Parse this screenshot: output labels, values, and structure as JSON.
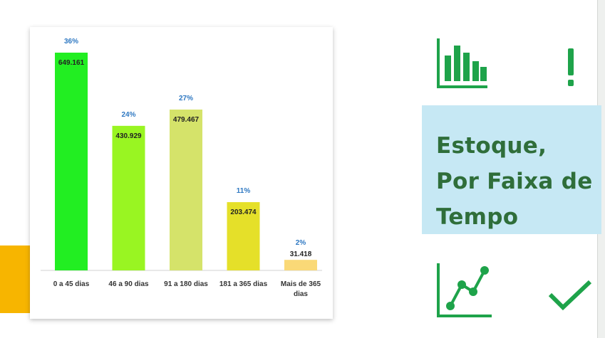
{
  "chart_data": {
    "type": "bar",
    "categories": [
      "0 a 45 dias",
      "46 a 90 dias",
      "91 a 180 dias",
      "181 a 365 dias",
      "Mais de 365 dias"
    ],
    "category_lines": [
      [
        "0 a 45 dias"
      ],
      [
        "46 a 90 dias"
      ],
      [
        "91 a 180 dias"
      ],
      [
        "181 a 365 dias"
      ],
      [
        "Mais de 365",
        "dias"
      ]
    ],
    "values": [
      649161,
      430929,
      479467,
      203474,
      31418
    ],
    "value_labels": [
      "649.161",
      "430.929",
      "479.467",
      "203.474",
      "31.418"
    ],
    "percent_labels": [
      "36%",
      "24%",
      "27%",
      "11%",
      "2%"
    ],
    "bar_colors": [
      "#22ee22",
      "#99f522",
      "#d5e36a",
      "#e5e029",
      "#fad977"
    ],
    "percent_color": "#2e78c2",
    "ylim": [
      0,
      700000
    ],
    "grid": false,
    "legend": "none"
  },
  "side_panel": {
    "title_lines": [
      "Estoque,",
      "Por Faixa de",
      "Tempo"
    ],
    "title_color": "#2f6e3a",
    "box_color": "#c6e8f4",
    "icon_color": "#1ea34a",
    "icons": [
      "bar-chart-icon",
      "exclamation-icon",
      "line-chart-icon",
      "checkmark-icon"
    ]
  },
  "accent_color": "#f7b500"
}
